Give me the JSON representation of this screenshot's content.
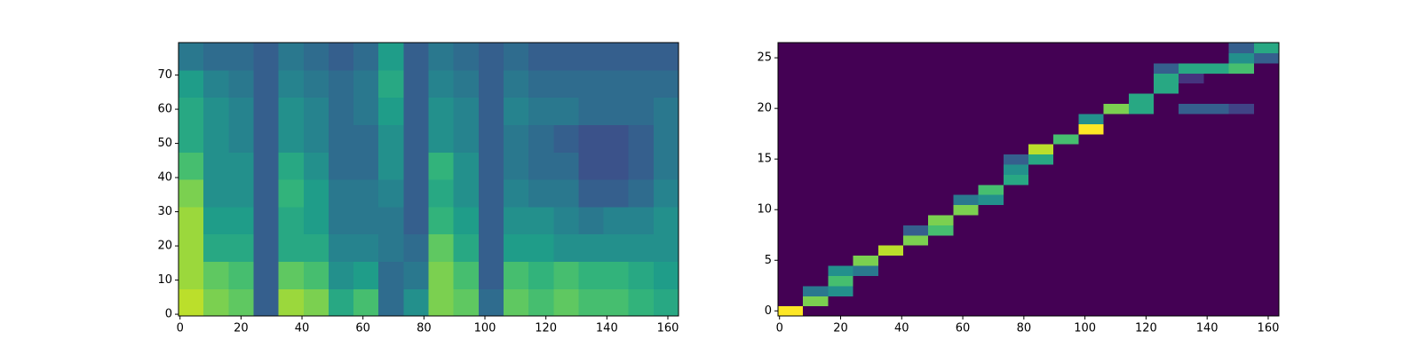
{
  "chart_data": [
    {
      "type": "heatmap",
      "xlim": [
        -0.5,
        163.5
      ],
      "ylim": [
        -0.5,
        79.5
      ],
      "xticks": [
        0,
        20,
        40,
        60,
        80,
        100,
        120,
        140,
        160
      ],
      "yticks": [
        0,
        10,
        20,
        30,
        40,
        50,
        60,
        70
      ],
      "colormap": "viridis",
      "z": [
        [
          0.9,
          0.8,
          0.75,
          0.3,
          0.85,
          0.8,
          0.6,
          0.7,
          0.35,
          0.5,
          0.8,
          0.75,
          0.35,
          0.75,
          0.7,
          0.75,
          0.7,
          0.7,
          0.65,
          0.6
        ],
        [
          0.85,
          0.75,
          0.7,
          0.3,
          0.75,
          0.7,
          0.5,
          0.55,
          0.35,
          0.4,
          0.8,
          0.7,
          0.3,
          0.7,
          0.65,
          0.7,
          0.65,
          0.65,
          0.6,
          0.55
        ],
        [
          0.85,
          0.6,
          0.6,
          0.3,
          0.6,
          0.6,
          0.45,
          0.45,
          0.4,
          0.35,
          0.75,
          0.6,
          0.3,
          0.55,
          0.55,
          0.5,
          0.5,
          0.5,
          0.5,
          0.5
        ],
        [
          0.85,
          0.55,
          0.55,
          0.3,
          0.6,
          0.55,
          0.4,
          0.4,
          0.4,
          0.3,
          0.65,
          0.55,
          0.3,
          0.5,
          0.5,
          0.45,
          0.4,
          0.45,
          0.45,
          0.5
        ],
        [
          0.8,
          0.5,
          0.5,
          0.3,
          0.65,
          0.55,
          0.4,
          0.4,
          0.45,
          0.3,
          0.6,
          0.5,
          0.3,
          0.45,
          0.4,
          0.4,
          0.3,
          0.3,
          0.35,
          0.45
        ],
        [
          0.7,
          0.5,
          0.5,
          0.3,
          0.6,
          0.5,
          0.35,
          0.35,
          0.5,
          0.3,
          0.65,
          0.5,
          0.3,
          0.4,
          0.35,
          0.35,
          0.25,
          0.25,
          0.3,
          0.4
        ],
        [
          0.6,
          0.5,
          0.45,
          0.3,
          0.5,
          0.45,
          0.35,
          0.35,
          0.5,
          0.3,
          0.5,
          0.45,
          0.3,
          0.4,
          0.35,
          0.3,
          0.25,
          0.25,
          0.3,
          0.4
        ],
        [
          0.6,
          0.5,
          0.45,
          0.3,
          0.5,
          0.45,
          0.35,
          0.4,
          0.55,
          0.3,
          0.5,
          0.45,
          0.3,
          0.45,
          0.4,
          0.4,
          0.35,
          0.35,
          0.35,
          0.4
        ],
        [
          0.55,
          0.45,
          0.4,
          0.3,
          0.45,
          0.4,
          0.35,
          0.4,
          0.6,
          0.3,
          0.45,
          0.4,
          0.3,
          0.4,
          0.35,
          0.35,
          0.35,
          0.35,
          0.35,
          0.35
        ],
        [
          0.4,
          0.35,
          0.35,
          0.3,
          0.4,
          0.35,
          0.3,
          0.35,
          0.55,
          0.3,
          0.4,
          0.35,
          0.3,
          0.35,
          0.3,
          0.3,
          0.3,
          0.3,
          0.3,
          0.3
        ]
      ]
    },
    {
      "type": "heatmap",
      "xlim": [
        -0.5,
        163.5
      ],
      "ylim": [
        -0.5,
        26.5
      ],
      "xticks": [
        0,
        20,
        40,
        60,
        80,
        100,
        120,
        140,
        160
      ],
      "yticks": [
        0,
        5,
        10,
        15,
        20,
        25
      ],
      "colormap": "viridis",
      "z": [
        [
          1,
          0,
          0,
          0,
          0,
          0,
          0,
          0,
          0,
          0,
          0,
          0,
          0,
          0,
          0,
          0,
          0,
          0,
          0,
          0
        ],
        [
          0,
          0.8,
          0,
          0,
          0,
          0,
          0,
          0,
          0,
          0,
          0,
          0,
          0,
          0,
          0,
          0,
          0,
          0,
          0,
          0
        ],
        [
          0,
          0.4,
          0.5,
          0,
          0,
          0,
          0,
          0,
          0,
          0,
          0,
          0,
          0,
          0,
          0,
          0,
          0,
          0,
          0,
          0
        ],
        [
          0,
          0,
          0.7,
          0,
          0,
          0,
          0,
          0,
          0,
          0,
          0,
          0,
          0,
          0,
          0,
          0,
          0,
          0,
          0,
          0
        ],
        [
          0,
          0,
          0.5,
          0.4,
          0,
          0,
          0,
          0,
          0,
          0,
          0,
          0,
          0,
          0,
          0,
          0,
          0,
          0,
          0,
          0
        ],
        [
          0,
          0,
          0,
          0.8,
          0,
          0,
          0,
          0,
          0,
          0,
          0,
          0,
          0,
          0,
          0,
          0,
          0,
          0,
          0,
          0
        ],
        [
          0,
          0,
          0,
          0,
          0.9,
          0,
          0,
          0,
          0,
          0,
          0,
          0,
          0,
          0,
          0,
          0,
          0,
          0,
          0,
          0
        ],
        [
          0,
          0,
          0,
          0,
          0,
          0.8,
          0,
          0,
          0,
          0,
          0,
          0,
          0,
          0,
          0,
          0,
          0,
          0,
          0,
          0
        ],
        [
          0,
          0,
          0,
          0,
          0,
          0.3,
          0.7,
          0,
          0,
          0,
          0,
          0,
          0,
          0,
          0,
          0,
          0,
          0,
          0,
          0
        ],
        [
          0,
          0,
          0,
          0,
          0,
          0,
          0.8,
          0,
          0,
          0,
          0,
          0,
          0,
          0,
          0,
          0,
          0,
          0,
          0,
          0
        ],
        [
          0,
          0,
          0,
          0,
          0,
          0,
          0,
          0.8,
          0,
          0,
          0,
          0,
          0,
          0,
          0,
          0,
          0,
          0,
          0,
          0
        ],
        [
          0,
          0,
          0,
          0,
          0,
          0,
          0,
          0.4,
          0.5,
          0,
          0,
          0,
          0,
          0,
          0,
          0,
          0,
          0,
          0,
          0
        ],
        [
          0,
          0,
          0,
          0,
          0,
          0,
          0,
          0,
          0.7,
          0,
          0,
          0,
          0,
          0,
          0,
          0,
          0,
          0,
          0,
          0
        ],
        [
          0,
          0,
          0,
          0,
          0,
          0,
          0,
          0,
          0,
          0.6,
          0,
          0,
          0,
          0,
          0,
          0,
          0,
          0,
          0,
          0
        ],
        [
          0,
          0,
          0,
          0,
          0,
          0,
          0,
          0,
          0,
          0.5,
          0,
          0,
          0,
          0,
          0,
          0,
          0,
          0,
          0,
          0
        ],
        [
          0,
          0,
          0,
          0,
          0,
          0,
          0,
          0,
          0,
          0.3,
          0.6,
          0,
          0,
          0,
          0,
          0,
          0,
          0,
          0,
          0
        ],
        [
          0,
          0,
          0,
          0,
          0,
          0,
          0,
          0,
          0,
          0,
          0.9,
          0,
          0,
          0,
          0,
          0,
          0,
          0,
          0,
          0
        ],
        [
          0,
          0,
          0,
          0,
          0,
          0,
          0,
          0,
          0,
          0,
          0,
          0.7,
          0,
          0,
          0,
          0,
          0,
          0,
          0,
          0
        ],
        [
          0,
          0,
          0,
          0,
          0,
          0,
          0,
          0,
          0,
          0,
          0,
          0,
          1,
          0,
          0,
          0,
          0,
          0,
          0,
          0
        ],
        [
          0,
          0,
          0,
          0,
          0,
          0,
          0,
          0,
          0,
          0,
          0,
          0,
          0.5,
          0,
          0,
          0,
          0,
          0,
          0,
          0
        ],
        [
          0,
          0,
          0,
          0,
          0,
          0,
          0,
          0,
          0,
          0,
          0,
          0,
          0,
          0.8,
          0.6,
          0,
          0.3,
          0.3,
          0.2,
          0
        ],
        [
          0,
          0,
          0,
          0,
          0,
          0,
          0,
          0,
          0,
          0,
          0,
          0,
          0,
          0,
          0.6,
          0,
          0,
          0,
          0,
          0
        ],
        [
          0,
          0,
          0,
          0,
          0,
          0,
          0,
          0,
          0,
          0,
          0,
          0,
          0,
          0,
          0,
          0.6,
          0,
          0,
          0,
          0
        ],
        [
          0,
          0,
          0,
          0,
          0,
          0,
          0,
          0,
          0,
          0,
          0,
          0,
          0,
          0,
          0,
          0.6,
          0.15,
          0,
          0,
          0
        ],
        [
          0,
          0,
          0,
          0,
          0,
          0,
          0,
          0,
          0,
          0,
          0,
          0,
          0,
          0,
          0,
          0.3,
          0.6,
          0.6,
          0.7,
          0
        ],
        [
          0,
          0,
          0,
          0,
          0,
          0,
          0,
          0,
          0,
          0,
          0,
          0,
          0,
          0,
          0,
          0,
          0,
          0,
          0.5,
          0.3
        ],
        [
          0,
          0,
          0,
          0,
          0,
          0,
          0,
          0,
          0,
          0,
          0,
          0,
          0,
          0,
          0,
          0,
          0,
          0,
          0.3,
          0.6
        ]
      ]
    }
  ]
}
